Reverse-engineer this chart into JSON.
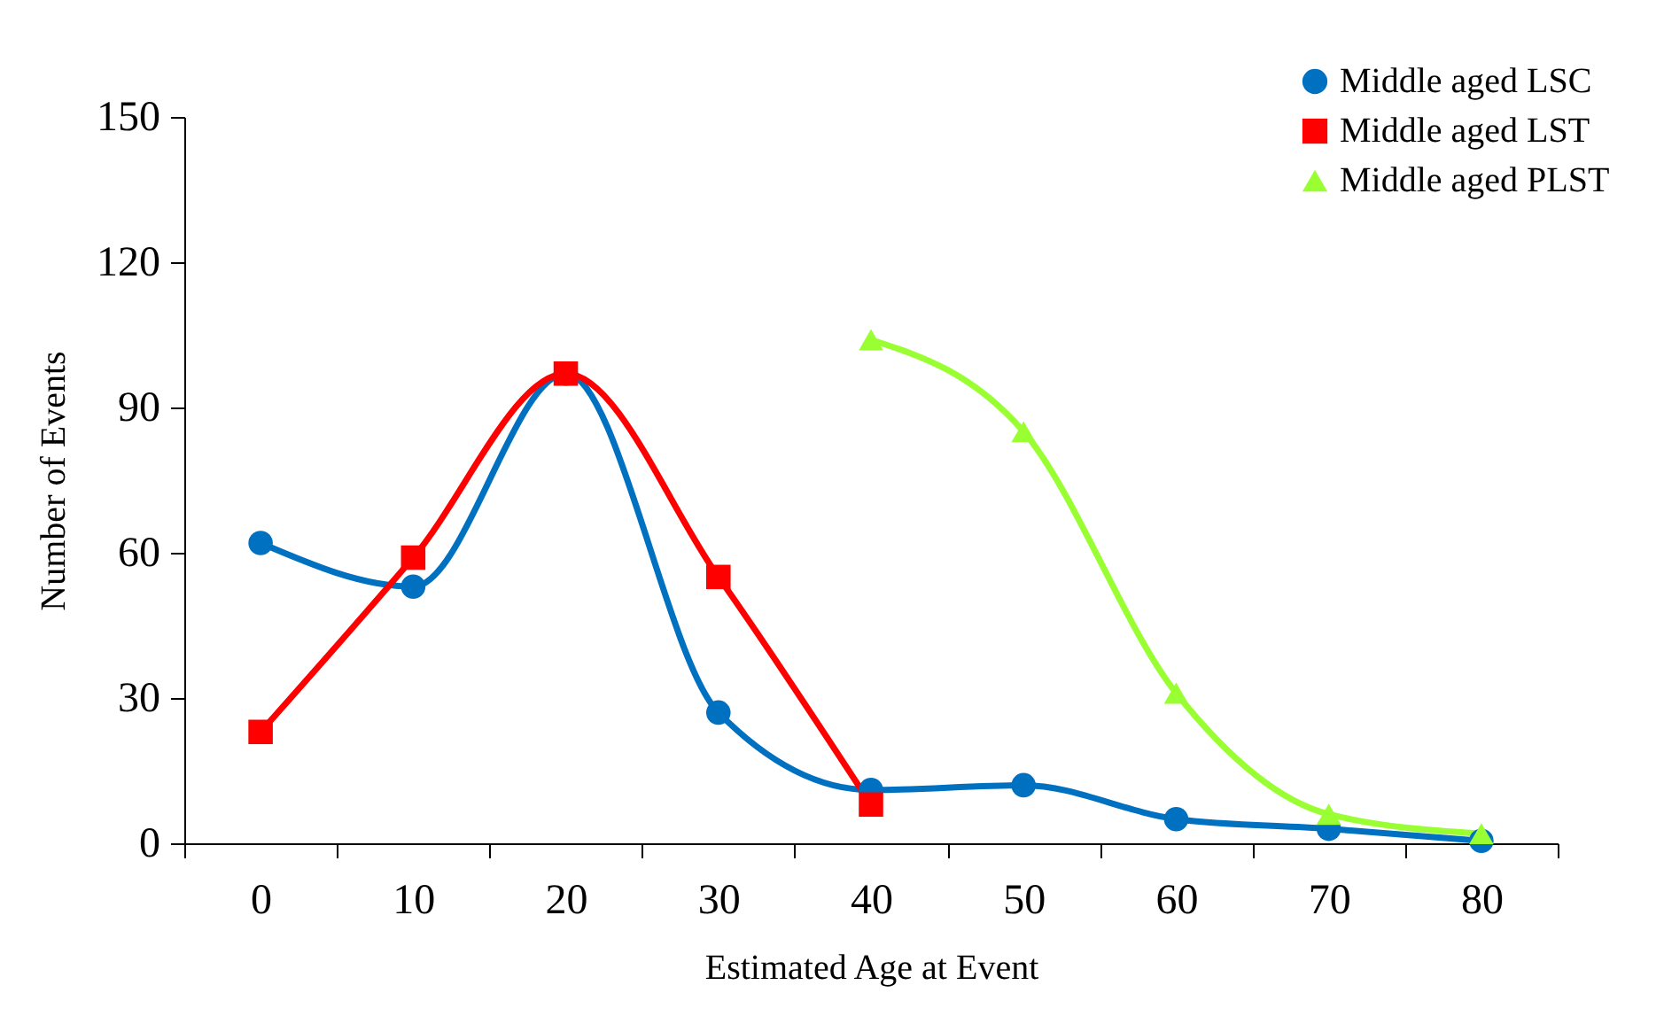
{
  "chart_data": {
    "type": "line",
    "xlabel": "Estimated Age at Event",
    "ylabel": "Number of Events",
    "categories": [
      "0",
      "10",
      "20",
      "30",
      "40",
      "50",
      "60",
      "70",
      "80"
    ],
    "series": [
      {
        "name": "Middle aged LSC",
        "color": "#0070c0",
        "marker": "circle",
        "values": [
          62,
          53,
          97,
          27,
          11,
          12,
          5,
          3,
          0.5
        ]
      },
      {
        "name": "Middle aged LST",
        "color": "#ff0000",
        "marker": "square",
        "values": [
          23,
          59,
          97,
          55,
          8,
          null,
          null,
          null,
          null
        ]
      },
      {
        "name": "Middle aged PLST",
        "color": "#99ff33",
        "marker": "triangle",
        "values": [
          null,
          null,
          null,
          null,
          104,
          85,
          31,
          6,
          2
        ]
      }
    ],
    "ylim": [
      0,
      150
    ],
    "yticks": [
      0,
      30,
      60,
      90,
      120,
      150
    ],
    "grid": false,
    "legend": "top right",
    "line_style": "solid"
  }
}
